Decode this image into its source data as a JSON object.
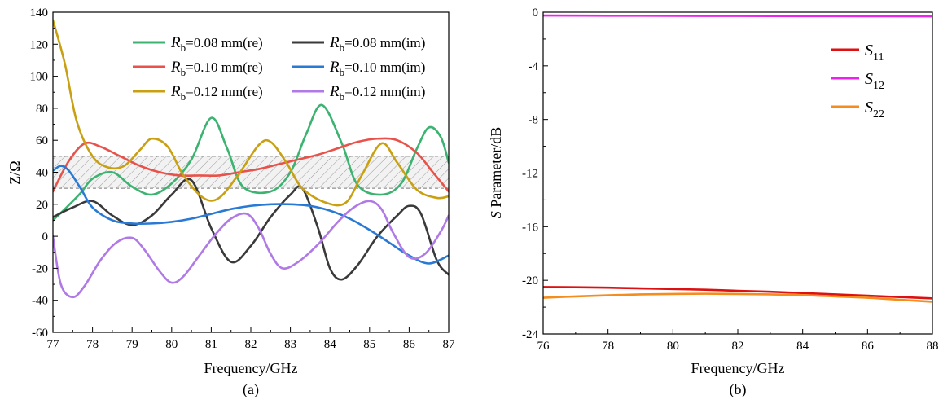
{
  "chart_data": [
    {
      "type": "line",
      "caption": "(a)",
      "xlabel": "Frequency/GHz",
      "ylabel": "Z/Ω",
      "xlim": [
        77,
        87
      ],
      "ylim": [
        -60,
        140
      ],
      "xticks": [
        "77",
        "78",
        "79",
        "80",
        "81",
        "82",
        "83",
        "84",
        "85",
        "86",
        "87"
      ],
      "yticks": [
        "-60",
        "-40",
        "-20",
        "0",
        "20",
        "40",
        "60",
        "80",
        "100",
        "120",
        "140"
      ],
      "legend_position": "top-right",
      "shaded_band": [
        30,
        50
      ],
      "series": [
        {
          "name": "Rb=0.08 mm(re)",
          "legend_symbol": "R",
          "legend_sub": "b",
          "legend_text": "=0.08 mm(re)",
          "color": "#3cb371",
          "x": [
            77,
            77.3,
            77.7,
            78,
            78.5,
            79,
            79.5,
            80,
            80.5,
            81,
            81.4,
            81.8,
            82.5,
            83,
            83.4,
            83.8,
            84.3,
            84.7,
            85.3,
            85.8,
            86.2,
            86.5,
            86.8,
            87
          ],
          "y": [
            10,
            17,
            27,
            36,
            40,
            31,
            26,
            33,
            48,
            74,
            55,
            31,
            28,
            40,
            64,
            82,
            58,
            32,
            26,
            33,
            55,
            68,
            62,
            46
          ]
        },
        {
          "name": "Rb=0.08 mm(im)",
          "legend_symbol": "R",
          "legend_sub": "b",
          "legend_text": "=0.08 mm(im)",
          "color": "#3a3a3a",
          "x": [
            77,
            77.5,
            78,
            78.5,
            79,
            79.5,
            80,
            80.5,
            81,
            81.5,
            82,
            82.5,
            83,
            83.3,
            83.7,
            84,
            84.3,
            84.7,
            85.2,
            85.7,
            86,
            86.3,
            86.7,
            87
          ],
          "y": [
            12,
            18,
            22,
            13,
            7,
            13,
            26,
            35,
            5,
            -16,
            -6,
            12,
            26,
            30,
            5,
            -20,
            -27,
            -18,
            0,
            13,
            19,
            14,
            -15,
            -24
          ]
        },
        {
          "name": "Rb=0.10 mm(re)",
          "legend_symbol": "R",
          "legend_sub": "b",
          "legend_text": "=0.10 mm(re)",
          "color": "#e8524a",
          "x": [
            77,
            77.4,
            77.8,
            78.2,
            78.7,
            79.2,
            79.7,
            80.2,
            80.7,
            81.2,
            81.7,
            82.2,
            82.7,
            83.2,
            83.7,
            84.2,
            84.7,
            85.2,
            85.7,
            86.2,
            86.6,
            87
          ],
          "y": [
            28,
            47,
            58,
            56,
            50,
            44,
            40,
            38,
            38,
            38,
            40,
            42,
            45,
            48,
            51,
            55,
            59,
            61,
            60,
            52,
            40,
            28
          ]
        },
        {
          "name": "Rb=0.10 mm(im)",
          "legend_symbol": "R",
          "legend_sub": "b",
          "legend_text": "=0.10 mm(im)",
          "color": "#2a7ad5",
          "x": [
            77,
            77.2,
            77.4,
            77.7,
            78,
            78.5,
            79,
            79.5,
            80,
            80.5,
            81,
            81.5,
            82,
            82.5,
            83,
            83.5,
            84,
            84.5,
            85,
            85.5,
            86,
            86.5,
            87
          ],
          "y": [
            41,
            44,
            41,
            30,
            18,
            10,
            8,
            8,
            9,
            11,
            14,
            17,
            19,
            20,
            20,
            19,
            16,
            11,
            4,
            -4,
            -12,
            -17,
            -12
          ]
        },
        {
          "name": "Rb=0.12 mm(re)",
          "legend_symbol": "R",
          "legend_sub": "b",
          "legend_text": "=0.12 mm(re)",
          "color": "#c8a012",
          "x": [
            77,
            77.3,
            77.6,
            78,
            78.4,
            78.8,
            79.2,
            79.5,
            79.9,
            80.3,
            80.8,
            81.2,
            81.7,
            82.2,
            82.5,
            82.9,
            83.3,
            83.9,
            84.4,
            84.8,
            85.3,
            85.7,
            86.2,
            86.7,
            87
          ],
          "y": [
            135,
            108,
            72,
            50,
            43,
            44,
            54,
            61,
            56,
            38,
            24,
            24,
            39,
            57,
            59,
            46,
            30,
            21,
            21,
            38,
            58,
            46,
            29,
            24,
            25
          ]
        },
        {
          "name": "Rb=0.12 mm(im)",
          "legend_symbol": "R",
          "legend_sub": "b",
          "legend_text": "=0.12 mm(im)",
          "color": "#b07ae6",
          "x": [
            77,
            77.2,
            77.5,
            77.8,
            78.2,
            78.6,
            79,
            79.3,
            79.7,
            80,
            80.3,
            80.7,
            81.1,
            81.5,
            81.9,
            82.2,
            82.5,
            82.8,
            83.2,
            83.7,
            84.2,
            84.6,
            85,
            85.3,
            85.6,
            86,
            86.4,
            86.8,
            87
          ],
          "y": [
            0,
            -30,
            -38,
            -31,
            -15,
            -4,
            -1,
            -8,
            -22,
            -29,
            -25,
            -12,
            1,
            11,
            14,
            5,
            -11,
            -20,
            -16,
            -5,
            9,
            18,
            22,
            17,
            2,
            -13,
            -11,
            3,
            13
          ]
        }
      ]
    },
    {
      "type": "line",
      "caption": "(b)",
      "xlabel": "Frequency/GHz",
      "ylabel_italic": "S",
      "ylabel_rest": " Parameter/dB",
      "xlim": [
        76,
        88
      ],
      "ylim": [
        -24,
        0
      ],
      "xticks": [
        "76",
        "78",
        "80",
        "82",
        "84",
        "86",
        "88"
      ],
      "yticks": [
        "-24",
        "-20",
        "-16",
        "-12",
        "-8",
        "-4",
        "0"
      ],
      "legend_position": "top-right",
      "series": [
        {
          "name": "S11",
          "legend_symbol": "S",
          "legend_sub": "11",
          "color": "#dd1111",
          "x": [
            76,
            77,
            78,
            79,
            80,
            81,
            82,
            83,
            84,
            85,
            86,
            87,
            88
          ],
          "y": [
            -20.5,
            -20.52,
            -20.55,
            -20.6,
            -20.65,
            -20.7,
            -20.78,
            -20.85,
            -20.95,
            -21.05,
            -21.15,
            -21.25,
            -21.35
          ]
        },
        {
          "name": "S12",
          "legend_symbol": "S",
          "legend_sub": "12",
          "color": "#ee22ee",
          "x": [
            76,
            78,
            80,
            82,
            84,
            86,
            88
          ],
          "y": [
            -0.25,
            -0.26,
            -0.27,
            -0.28,
            -0.29,
            -0.3,
            -0.31
          ]
        },
        {
          "name": "S22",
          "legend_symbol": "S",
          "legend_sub": "22",
          "color": "#f58c1e",
          "x": [
            76,
            77,
            78,
            79,
            80,
            81,
            82,
            83,
            84,
            85,
            86,
            87,
            88
          ],
          "y": [
            -21.3,
            -21.2,
            -21.12,
            -21.05,
            -21.02,
            -21.0,
            -21.02,
            -21.05,
            -21.1,
            -21.2,
            -21.3,
            -21.45,
            -21.6
          ]
        }
      ]
    }
  ]
}
